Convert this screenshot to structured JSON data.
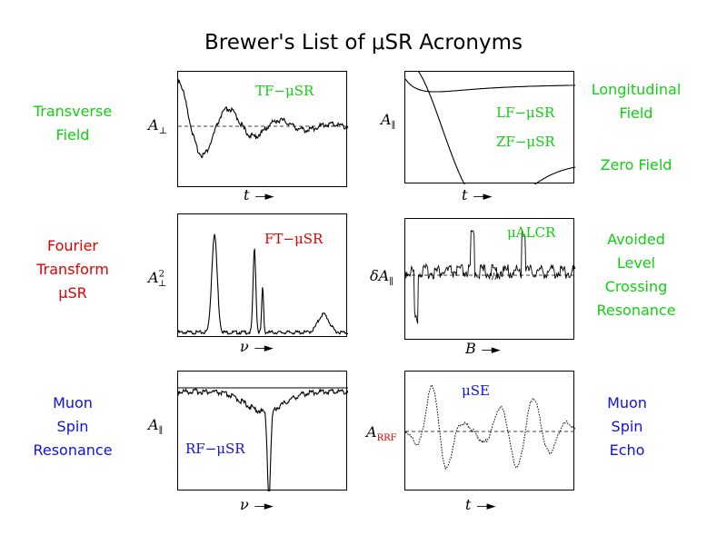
{
  "title": "Brewer's List of μSR Acronyms",
  "colors": {
    "green": "#10d010",
    "red": "#e00000",
    "blue": "#1010e0"
  },
  "left_labels": {
    "tf": [
      "Transverse",
      "Field"
    ],
    "ft": [
      "Fourier",
      "Transform",
      "μSR"
    ],
    "rf": [
      "Muon",
      "Spin",
      "Resonance"
    ]
  },
  "right_labels": {
    "lf": [
      "Longitudinal",
      "Field"
    ],
    "zf": [
      "Zero Field"
    ],
    "alcr": [
      "Avoided",
      "Level",
      "Crossing",
      "Resonance"
    ],
    "se": [
      "Muon",
      "Spin",
      "Echo"
    ]
  },
  "panels": {
    "tf": {
      "label": "TF−μSR",
      "ylabel": "A",
      "ysub": "⊥",
      "xlabel": "t"
    },
    "lfzf": {
      "label_lf": "LF−μSR",
      "label_zf": "ZF−μSR",
      "ylabel": "A",
      "ysub": "∥",
      "xlabel": "t"
    },
    "ft": {
      "label": "FT−μSR",
      "ylabel": "A",
      "ysub": "⊥",
      "ysup": "2",
      "xlabel": "ν"
    },
    "alcr": {
      "label": "μALCR",
      "ylabel": "δA",
      "ysub": "∥",
      "xlabel": "B"
    },
    "rf": {
      "label": "RF−μSR",
      "ylabel": "A",
      "ysub": "∥",
      "xlabel": "ν"
    },
    "se": {
      "label": "μSE",
      "ylabel": "A",
      "ysub": "RRF",
      "xlabel": "t"
    }
  }
}
